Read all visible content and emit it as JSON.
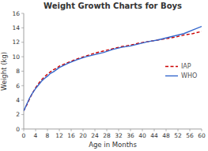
{
  "chart_data": {
    "type": "line",
    "title": "Weight Growth Charts for Boys",
    "x_label": "Age in Months",
    "y_label": "Weight (kg)",
    "x": [
      0,
      1,
      2,
      3,
      4,
      5,
      6,
      7,
      8,
      9,
      10,
      11,
      12,
      15,
      18,
      21,
      24,
      27,
      30,
      33,
      36,
      39,
      42,
      45,
      48,
      51,
      54,
      57,
      60
    ],
    "series": [
      {
        "name": "IAP",
        "color": "#cc0000",
        "line_style": "dashed",
        "values": [
          2.5,
          3.3,
          4.2,
          5.0,
          5.7,
          6.3,
          6.8,
          7.2,
          7.6,
          7.9,
          8.2,
          8.4,
          8.7,
          9.2,
          9.7,
          10.1,
          10.5,
          10.8,
          11.1,
          11.4,
          11.6,
          11.9,
          12.1,
          12.3,
          12.5,
          12.7,
          13.0,
          13.2,
          13.5
        ]
      },
      {
        "name": "WHO",
        "color": "#3366cc",
        "line_style": "solid",
        "values": [
          2.5,
          3.4,
          4.3,
          5.0,
          5.6,
          6.1,
          6.6,
          7.0,
          7.3,
          7.7,
          7.9,
          8.2,
          8.5,
          9.1,
          9.6,
          10.0,
          10.3,
          10.6,
          11.0,
          11.3,
          11.5,
          11.8,
          12.1,
          12.3,
          12.6,
          12.9,
          13.2,
          13.7,
          14.2
        ]
      }
    ],
    "xlim": [
      0,
      60
    ],
    "ylim": [
      0,
      16
    ],
    "xticks": [
      0,
      4,
      8,
      12,
      16,
      20,
      24,
      28,
      32,
      36,
      40,
      44,
      48,
      52,
      56,
      60
    ],
    "yticks": [
      0,
      2,
      4,
      6,
      8,
      10,
      12,
      14,
      16
    ],
    "grid": false,
    "legend": "right"
  }
}
